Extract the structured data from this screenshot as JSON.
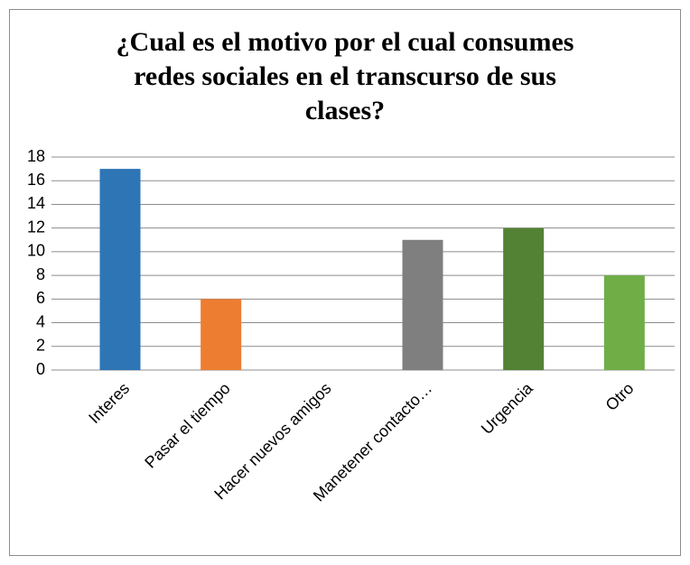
{
  "chart_data": {
    "type": "bar",
    "title": "¿Cual es el motivo por el cual consumes redes sociales en el transcurso de sus clases?",
    "categories": [
      "Interes",
      "Pasar el tiempo",
      "Hacer nuevos amigos",
      "Manetener contacto…",
      "Urgencia",
      "Otro"
    ],
    "values": [
      17,
      6,
      0,
      11,
      12,
      8
    ],
    "colors": [
      "#2e75b6",
      "#ed7d31",
      "#a5a5a5",
      "#7f7f7f",
      "#548235",
      "#70ad47"
    ],
    "ylim": [
      0,
      18
    ],
    "yticks": [
      0,
      2,
      4,
      6,
      8,
      10,
      12,
      14,
      16,
      18
    ],
    "grid": true
  }
}
